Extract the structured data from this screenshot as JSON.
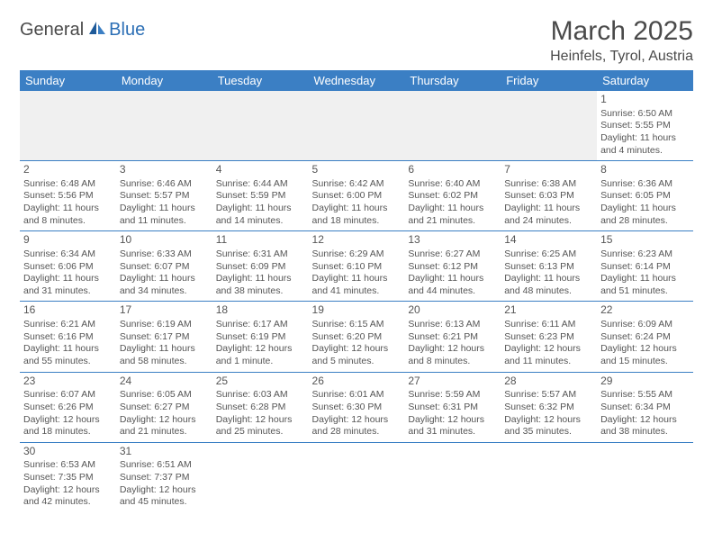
{
  "logo": {
    "general": "General",
    "blue": "Blue"
  },
  "title": "March 2025",
  "location": "Heinfels, Tyrol, Austria",
  "colors": {
    "header_bg": "#3b7fc4",
    "header_fg": "#ffffff",
    "border": "#3b7fc4",
    "text": "#555555",
    "title": "#4a4a4a",
    "blank_bg": "#f0f0f0",
    "logo_blue": "#2c6fb5"
  },
  "weekdays": [
    "Sunday",
    "Monday",
    "Tuesday",
    "Wednesday",
    "Thursday",
    "Friday",
    "Saturday"
  ],
  "days": {
    "1": {
      "sunrise": "6:50 AM",
      "sunset": "5:55 PM",
      "daylight": "11 hours and 4 minutes."
    },
    "2": {
      "sunrise": "6:48 AM",
      "sunset": "5:56 PM",
      "daylight": "11 hours and 8 minutes."
    },
    "3": {
      "sunrise": "6:46 AM",
      "sunset": "5:57 PM",
      "daylight": "11 hours and 11 minutes."
    },
    "4": {
      "sunrise": "6:44 AM",
      "sunset": "5:59 PM",
      "daylight": "11 hours and 14 minutes."
    },
    "5": {
      "sunrise": "6:42 AM",
      "sunset": "6:00 PM",
      "daylight": "11 hours and 18 minutes."
    },
    "6": {
      "sunrise": "6:40 AM",
      "sunset": "6:02 PM",
      "daylight": "11 hours and 21 minutes."
    },
    "7": {
      "sunrise": "6:38 AM",
      "sunset": "6:03 PM",
      "daylight": "11 hours and 24 minutes."
    },
    "8": {
      "sunrise": "6:36 AM",
      "sunset": "6:05 PM",
      "daylight": "11 hours and 28 minutes."
    },
    "9": {
      "sunrise": "6:34 AM",
      "sunset": "6:06 PM",
      "daylight": "11 hours and 31 minutes."
    },
    "10": {
      "sunrise": "6:33 AM",
      "sunset": "6:07 PM",
      "daylight": "11 hours and 34 minutes."
    },
    "11": {
      "sunrise": "6:31 AM",
      "sunset": "6:09 PM",
      "daylight": "11 hours and 38 minutes."
    },
    "12": {
      "sunrise": "6:29 AM",
      "sunset": "6:10 PM",
      "daylight": "11 hours and 41 minutes."
    },
    "13": {
      "sunrise": "6:27 AM",
      "sunset": "6:12 PM",
      "daylight": "11 hours and 44 minutes."
    },
    "14": {
      "sunrise": "6:25 AM",
      "sunset": "6:13 PM",
      "daylight": "11 hours and 48 minutes."
    },
    "15": {
      "sunrise": "6:23 AM",
      "sunset": "6:14 PM",
      "daylight": "11 hours and 51 minutes."
    },
    "16": {
      "sunrise": "6:21 AM",
      "sunset": "6:16 PM",
      "daylight": "11 hours and 55 minutes."
    },
    "17": {
      "sunrise": "6:19 AM",
      "sunset": "6:17 PM",
      "daylight": "11 hours and 58 minutes."
    },
    "18": {
      "sunrise": "6:17 AM",
      "sunset": "6:19 PM",
      "daylight": "12 hours and 1 minute."
    },
    "19": {
      "sunrise": "6:15 AM",
      "sunset": "6:20 PM",
      "daylight": "12 hours and 5 minutes."
    },
    "20": {
      "sunrise": "6:13 AM",
      "sunset": "6:21 PM",
      "daylight": "12 hours and 8 minutes."
    },
    "21": {
      "sunrise": "6:11 AM",
      "sunset": "6:23 PM",
      "daylight": "12 hours and 11 minutes."
    },
    "22": {
      "sunrise": "6:09 AM",
      "sunset": "6:24 PM",
      "daylight": "12 hours and 15 minutes."
    },
    "23": {
      "sunrise": "6:07 AM",
      "sunset": "6:26 PM",
      "daylight": "12 hours and 18 minutes."
    },
    "24": {
      "sunrise": "6:05 AM",
      "sunset": "6:27 PM",
      "daylight": "12 hours and 21 minutes."
    },
    "25": {
      "sunrise": "6:03 AM",
      "sunset": "6:28 PM",
      "daylight": "12 hours and 25 minutes."
    },
    "26": {
      "sunrise": "6:01 AM",
      "sunset": "6:30 PM",
      "daylight": "12 hours and 28 minutes."
    },
    "27": {
      "sunrise": "5:59 AM",
      "sunset": "6:31 PM",
      "daylight": "12 hours and 31 minutes."
    },
    "28": {
      "sunrise": "5:57 AM",
      "sunset": "6:32 PM",
      "daylight": "12 hours and 35 minutes."
    },
    "29": {
      "sunrise": "5:55 AM",
      "sunset": "6:34 PM",
      "daylight": "12 hours and 38 minutes."
    },
    "30": {
      "sunrise": "6:53 AM",
      "sunset": "7:35 PM",
      "daylight": "12 hours and 42 minutes."
    },
    "31": {
      "sunrise": "6:51 AM",
      "sunset": "7:37 PM",
      "daylight": "12 hours and 45 minutes."
    }
  },
  "labels": {
    "sunrise": "Sunrise:",
    "sunset": "Sunset:",
    "daylight": "Daylight:"
  },
  "grid": [
    [
      null,
      null,
      null,
      null,
      null,
      null,
      1
    ],
    [
      2,
      3,
      4,
      5,
      6,
      7,
      8
    ],
    [
      9,
      10,
      11,
      12,
      13,
      14,
      15
    ],
    [
      16,
      17,
      18,
      19,
      20,
      21,
      22
    ],
    [
      23,
      24,
      25,
      26,
      27,
      28,
      29
    ],
    [
      30,
      31,
      null,
      null,
      null,
      null,
      null
    ]
  ]
}
